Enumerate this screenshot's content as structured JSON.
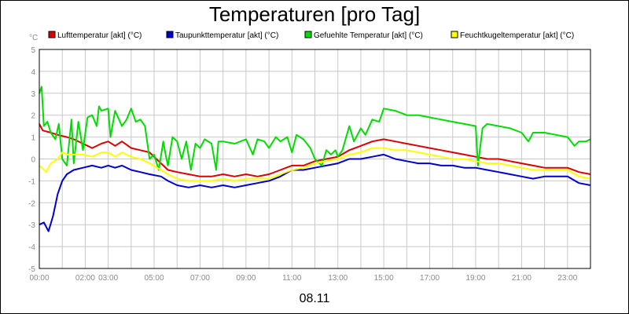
{
  "chart_data": {
    "type": "line",
    "title": "Temperaturen [pro Tag]",
    "ylabel": "°C",
    "xlabel": "08.11",
    "ylim": [
      -5,
      5
    ],
    "xlim": [
      0,
      24
    ],
    "y_ticks": [
      "5",
      "4",
      "3",
      "2",
      "1",
      "0",
      "-1",
      "-2",
      "-3",
      "-4",
      "-5"
    ],
    "y_tick_values": [
      5,
      4,
      3,
      2,
      1,
      0,
      -1,
      -2,
      -3,
      -4,
      -5
    ],
    "x_ticks": [
      "00:00",
      "02:00",
      "03:00",
      "05:00",
      "07:00",
      "09:00",
      "11:00",
      "13:00",
      "15:00",
      "17:00",
      "19:00",
      "21:00",
      "23:00"
    ],
    "x_tick_values": [
      0,
      2,
      3,
      5,
      7,
      9,
      11,
      13,
      15,
      17,
      19,
      21,
      23
    ],
    "grid": true,
    "legend_position": "top",
    "series": [
      {
        "name": "Lufttemperatur [akt] (°C)",
        "color": "#dd0000",
        "x": [
          0,
          0.15,
          0.5,
          0.8,
          1.2,
          1.5,
          1.9,
          2.3,
          2.7,
          3.0,
          3.3,
          3.6,
          4.0,
          4.4,
          4.8,
          5.3,
          5.6,
          6.0,
          6.5,
          7.0,
          7.5,
          8.0,
          8.5,
          9.0,
          9.5,
          10.0,
          10.5,
          11.0,
          11.5,
          12.0,
          12.5,
          13.0,
          13.5,
          14.0,
          14.5,
          15.0,
          15.5,
          16.0,
          16.5,
          17.0,
          17.5,
          18.0,
          18.5,
          19.0,
          19.5,
          20.0,
          20.5,
          21.0,
          21.5,
          22.0,
          22.5,
          23.0,
          23.5,
          24.0
        ],
        "values": [
          1.6,
          1.3,
          1.2,
          1.1,
          1.0,
          0.9,
          0.7,
          0.5,
          0.7,
          0.8,
          0.6,
          0.8,
          0.5,
          0.4,
          0.3,
          -0.2,
          -0.5,
          -0.6,
          -0.7,
          -0.8,
          -0.8,
          -0.7,
          -0.8,
          -0.7,
          -0.8,
          -0.7,
          -0.5,
          -0.3,
          -0.3,
          -0.1,
          0.0,
          0.1,
          0.4,
          0.6,
          0.8,
          0.9,
          0.8,
          0.7,
          0.6,
          0.5,
          0.4,
          0.3,
          0.2,
          0.1,
          0.0,
          0.0,
          -0.1,
          -0.2,
          -0.3,
          -0.4,
          -0.4,
          -0.4,
          -0.6,
          -0.7
        ]
      },
      {
        "name": "Taupunkttemperatur [akt] (°C)",
        "color": "#0000cc",
        "x": [
          0,
          0.2,
          0.4,
          0.6,
          0.8,
          1.0,
          1.2,
          1.5,
          1.9,
          2.3,
          2.7,
          3.0,
          3.3,
          3.6,
          4.0,
          4.4,
          4.8,
          5.3,
          5.6,
          6.0,
          6.5,
          7.0,
          7.5,
          8.0,
          8.5,
          9.0,
          9.5,
          10.0,
          10.5,
          11.0,
          11.5,
          12.0,
          12.5,
          13.0,
          13.5,
          14.0,
          14.5,
          15.0,
          15.5,
          16.0,
          16.5,
          17.0,
          17.5,
          18.0,
          18.5,
          19.0,
          19.5,
          20.0,
          20.5,
          21.0,
          21.5,
          22.0,
          22.5,
          23.0,
          23.5,
          24.0
        ],
        "values": [
          -3.0,
          -2.9,
          -3.3,
          -2.6,
          -1.6,
          -1.0,
          -0.7,
          -0.5,
          -0.4,
          -0.3,
          -0.4,
          -0.3,
          -0.4,
          -0.3,
          -0.5,
          -0.6,
          -0.7,
          -0.8,
          -1.0,
          -1.2,
          -1.3,
          -1.2,
          -1.3,
          -1.2,
          -1.3,
          -1.2,
          -1.1,
          -1.0,
          -0.8,
          -0.5,
          -0.5,
          -0.4,
          -0.3,
          -0.2,
          0.0,
          0.0,
          0.1,
          0.2,
          0.0,
          -0.1,
          -0.2,
          -0.2,
          -0.3,
          -0.3,
          -0.4,
          -0.4,
          -0.5,
          -0.6,
          -0.7,
          -0.8,
          -0.9,
          -0.8,
          -0.8,
          -0.8,
          -1.1,
          -1.2
        ]
      },
      {
        "name": "Gefuehlte Temperatur [akt] (°C)",
        "color": "#00dd00",
        "x": [
          0,
          0.1,
          0.2,
          0.35,
          0.5,
          0.7,
          0.85,
          1.0,
          1.2,
          1.4,
          1.5,
          1.7,
          1.9,
          2.1,
          2.3,
          2.5,
          2.6,
          2.7,
          3.0,
          3.1,
          3.3,
          3.6,
          3.8,
          4.0,
          4.2,
          4.4,
          4.6,
          4.8,
          5.0,
          5.2,
          5.4,
          5.5,
          5.6,
          5.8,
          6.0,
          6.2,
          6.4,
          6.6,
          6.8,
          7.0,
          7.2,
          7.5,
          7.7,
          7.8,
          8.0,
          8.5,
          9.0,
          9.3,
          9.5,
          9.8,
          10.0,
          10.3,
          10.5,
          10.8,
          11.0,
          11.2,
          11.5,
          11.8,
          12.0,
          12.3,
          12.5,
          12.7,
          12.9,
          13.0,
          13.2,
          13.5,
          13.7,
          14.0,
          14.2,
          14.5,
          14.8,
          15.0,
          15.5,
          16.0,
          16.5,
          17.0,
          17.5,
          18.0,
          18.5,
          19.0,
          19.1,
          19.3,
          19.5,
          20.0,
          20.5,
          21.0,
          21.3,
          21.5,
          22.0,
          22.5,
          23.0,
          23.3,
          23.5,
          23.8,
          24.0
        ],
        "values": [
          3.0,
          3.3,
          1.5,
          1.7,
          1.2,
          0.9,
          1.6,
          0.0,
          -0.3,
          1.8,
          -0.2,
          1.7,
          0.4,
          1.9,
          2.0,
          1.5,
          2.4,
          2.2,
          2.3,
          1.0,
          2.2,
          1.5,
          1.8,
          2.3,
          1.7,
          1.8,
          1.5,
          0.0,
          0.2,
          -0.5,
          0.8,
          0.2,
          -0.3,
          1.0,
          0.8,
          0.0,
          0.8,
          -0.5,
          0.7,
          0.5,
          0.9,
          0.7,
          -0.5,
          0.8,
          0.8,
          0.7,
          0.9,
          0.2,
          0.9,
          0.8,
          0.5,
          1.0,
          0.8,
          1.0,
          0.3,
          1.1,
          0.9,
          0.5,
          0.0,
          -0.3,
          0.4,
          0.2,
          0.4,
          0.1,
          0.4,
          1.5,
          0.8,
          1.4,
          1.1,
          1.8,
          1.7,
          2.3,
          2.2,
          2.0,
          2.0,
          1.9,
          1.8,
          1.7,
          1.6,
          1.5,
          -0.3,
          1.4,
          1.6,
          1.5,
          1.4,
          1.2,
          0.8,
          1.2,
          1.2,
          1.1,
          1.0,
          0.6,
          0.8,
          0.8,
          0.9
        ]
      },
      {
        "name": "Feuchtkugeltemperatur [akt] (°C)",
        "color": "#ffff00",
        "x": [
          0,
          0.3,
          0.5,
          0.8,
          1.0,
          1.2,
          1.5,
          1.9,
          2.3,
          2.7,
          3.0,
          3.3,
          3.6,
          4.0,
          4.4,
          4.8,
          5.3,
          5.6,
          6.0,
          6.5,
          7.0,
          7.5,
          8.0,
          8.5,
          9.0,
          9.5,
          10.0,
          10.5,
          11.0,
          11.5,
          12.0,
          12.5,
          13.0,
          13.5,
          14.0,
          14.5,
          15.0,
          15.5,
          16.0,
          16.5,
          17.0,
          17.5,
          18.0,
          18.5,
          19.0,
          19.5,
          20.0,
          20.5,
          21.0,
          21.5,
          22.0,
          22.5,
          23.0,
          23.5,
          24.0
        ],
        "values": [
          -0.3,
          -0.6,
          -0.2,
          0.0,
          0.3,
          0.2,
          0.2,
          0.2,
          0.1,
          0.3,
          0.3,
          0.1,
          0.3,
          0.1,
          0.0,
          -0.2,
          -0.5,
          -0.7,
          -0.9,
          -1.0,
          -1.0,
          -1.0,
          -0.9,
          -1.0,
          -0.9,
          -0.9,
          -0.9,
          -0.7,
          -0.5,
          -0.4,
          -0.2,
          -0.1,
          0.0,
          0.2,
          0.3,
          0.5,
          0.5,
          0.4,
          0.4,
          0.3,
          0.2,
          0.1,
          0.0,
          0.0,
          -0.1,
          -0.2,
          -0.2,
          -0.3,
          -0.4,
          -0.5,
          -0.5,
          -0.5,
          -0.5,
          -0.8,
          -0.9
        ]
      }
    ]
  }
}
